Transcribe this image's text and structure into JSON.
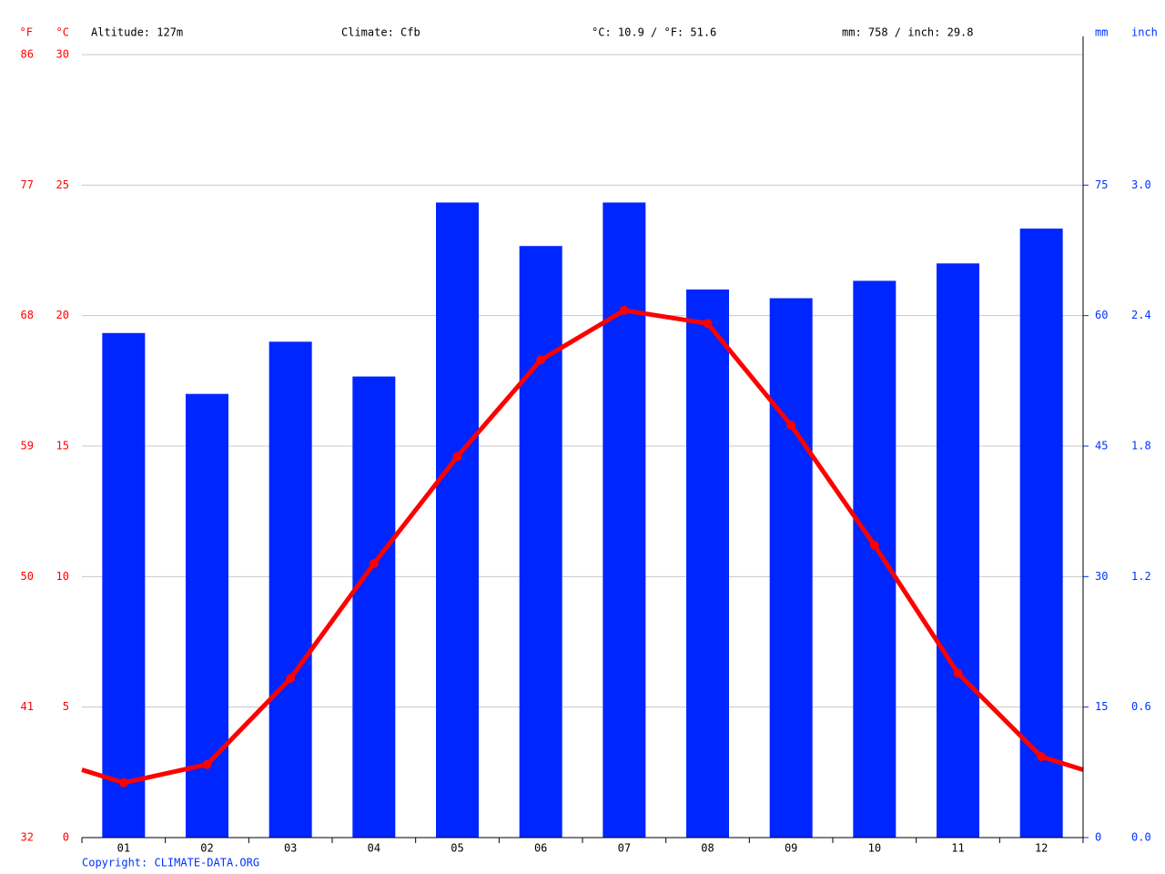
{
  "chart_data": {
    "type": "combo",
    "stats": [
      "Altitude: 127m",
      "Climate: Cfb",
      "°C: 10.9 / °F: 51.6",
      "mm: 758 / inch: 29.8"
    ],
    "y_unit_f": "°F",
    "y_unit": "°C",
    "y2_unit": "mm",
    "y2_unit_inch": "inch",
    "source": "Copyright: CLIMATE-DATA.ORG",
    "categories": [
      "01",
      "02",
      "03",
      "04",
      "05",
      "06",
      "07",
      "08",
      "09",
      "10",
      "11",
      "12"
    ],
    "series": [
      {
        "type": "bar",
        "axis": "y2",
        "color": "#0026ff",
        "values": [
          58,
          51,
          57,
          53,
          73,
          68,
          73,
          63,
          62,
          64,
          66,
          70
        ]
      },
      {
        "type": "line",
        "color": "#ff0000",
        "values": [
          2.1,
          2.8,
          6.1,
          10.5,
          14.6,
          18.3,
          20.2,
          19.7,
          15.8,
          11.2,
          6.3,
          3.1
        ]
      }
    ],
    "ylim": [
      0,
      30
    ],
    "yticks": [
      0,
      5,
      10,
      15,
      20,
      25,
      30
    ],
    "ylim_f": [
      32,
      86
    ],
    "yticks_f": [
      32,
      41,
      50,
      59,
      68,
      77,
      86
    ],
    "y2lim": [
      0,
      90
    ],
    "y2ticks": [
      0,
      15,
      30,
      45,
      60,
      75
    ],
    "y2lim_inch": [
      0,
      3.6
    ],
    "y2ticks_inch": [
      {
        "value": 0,
        "label": "0.0"
      },
      0.6,
      1.2,
      1.8,
      2.4,
      {
        "value": 3,
        "label": "3.0"
      }
    ],
    "grid": true
  }
}
